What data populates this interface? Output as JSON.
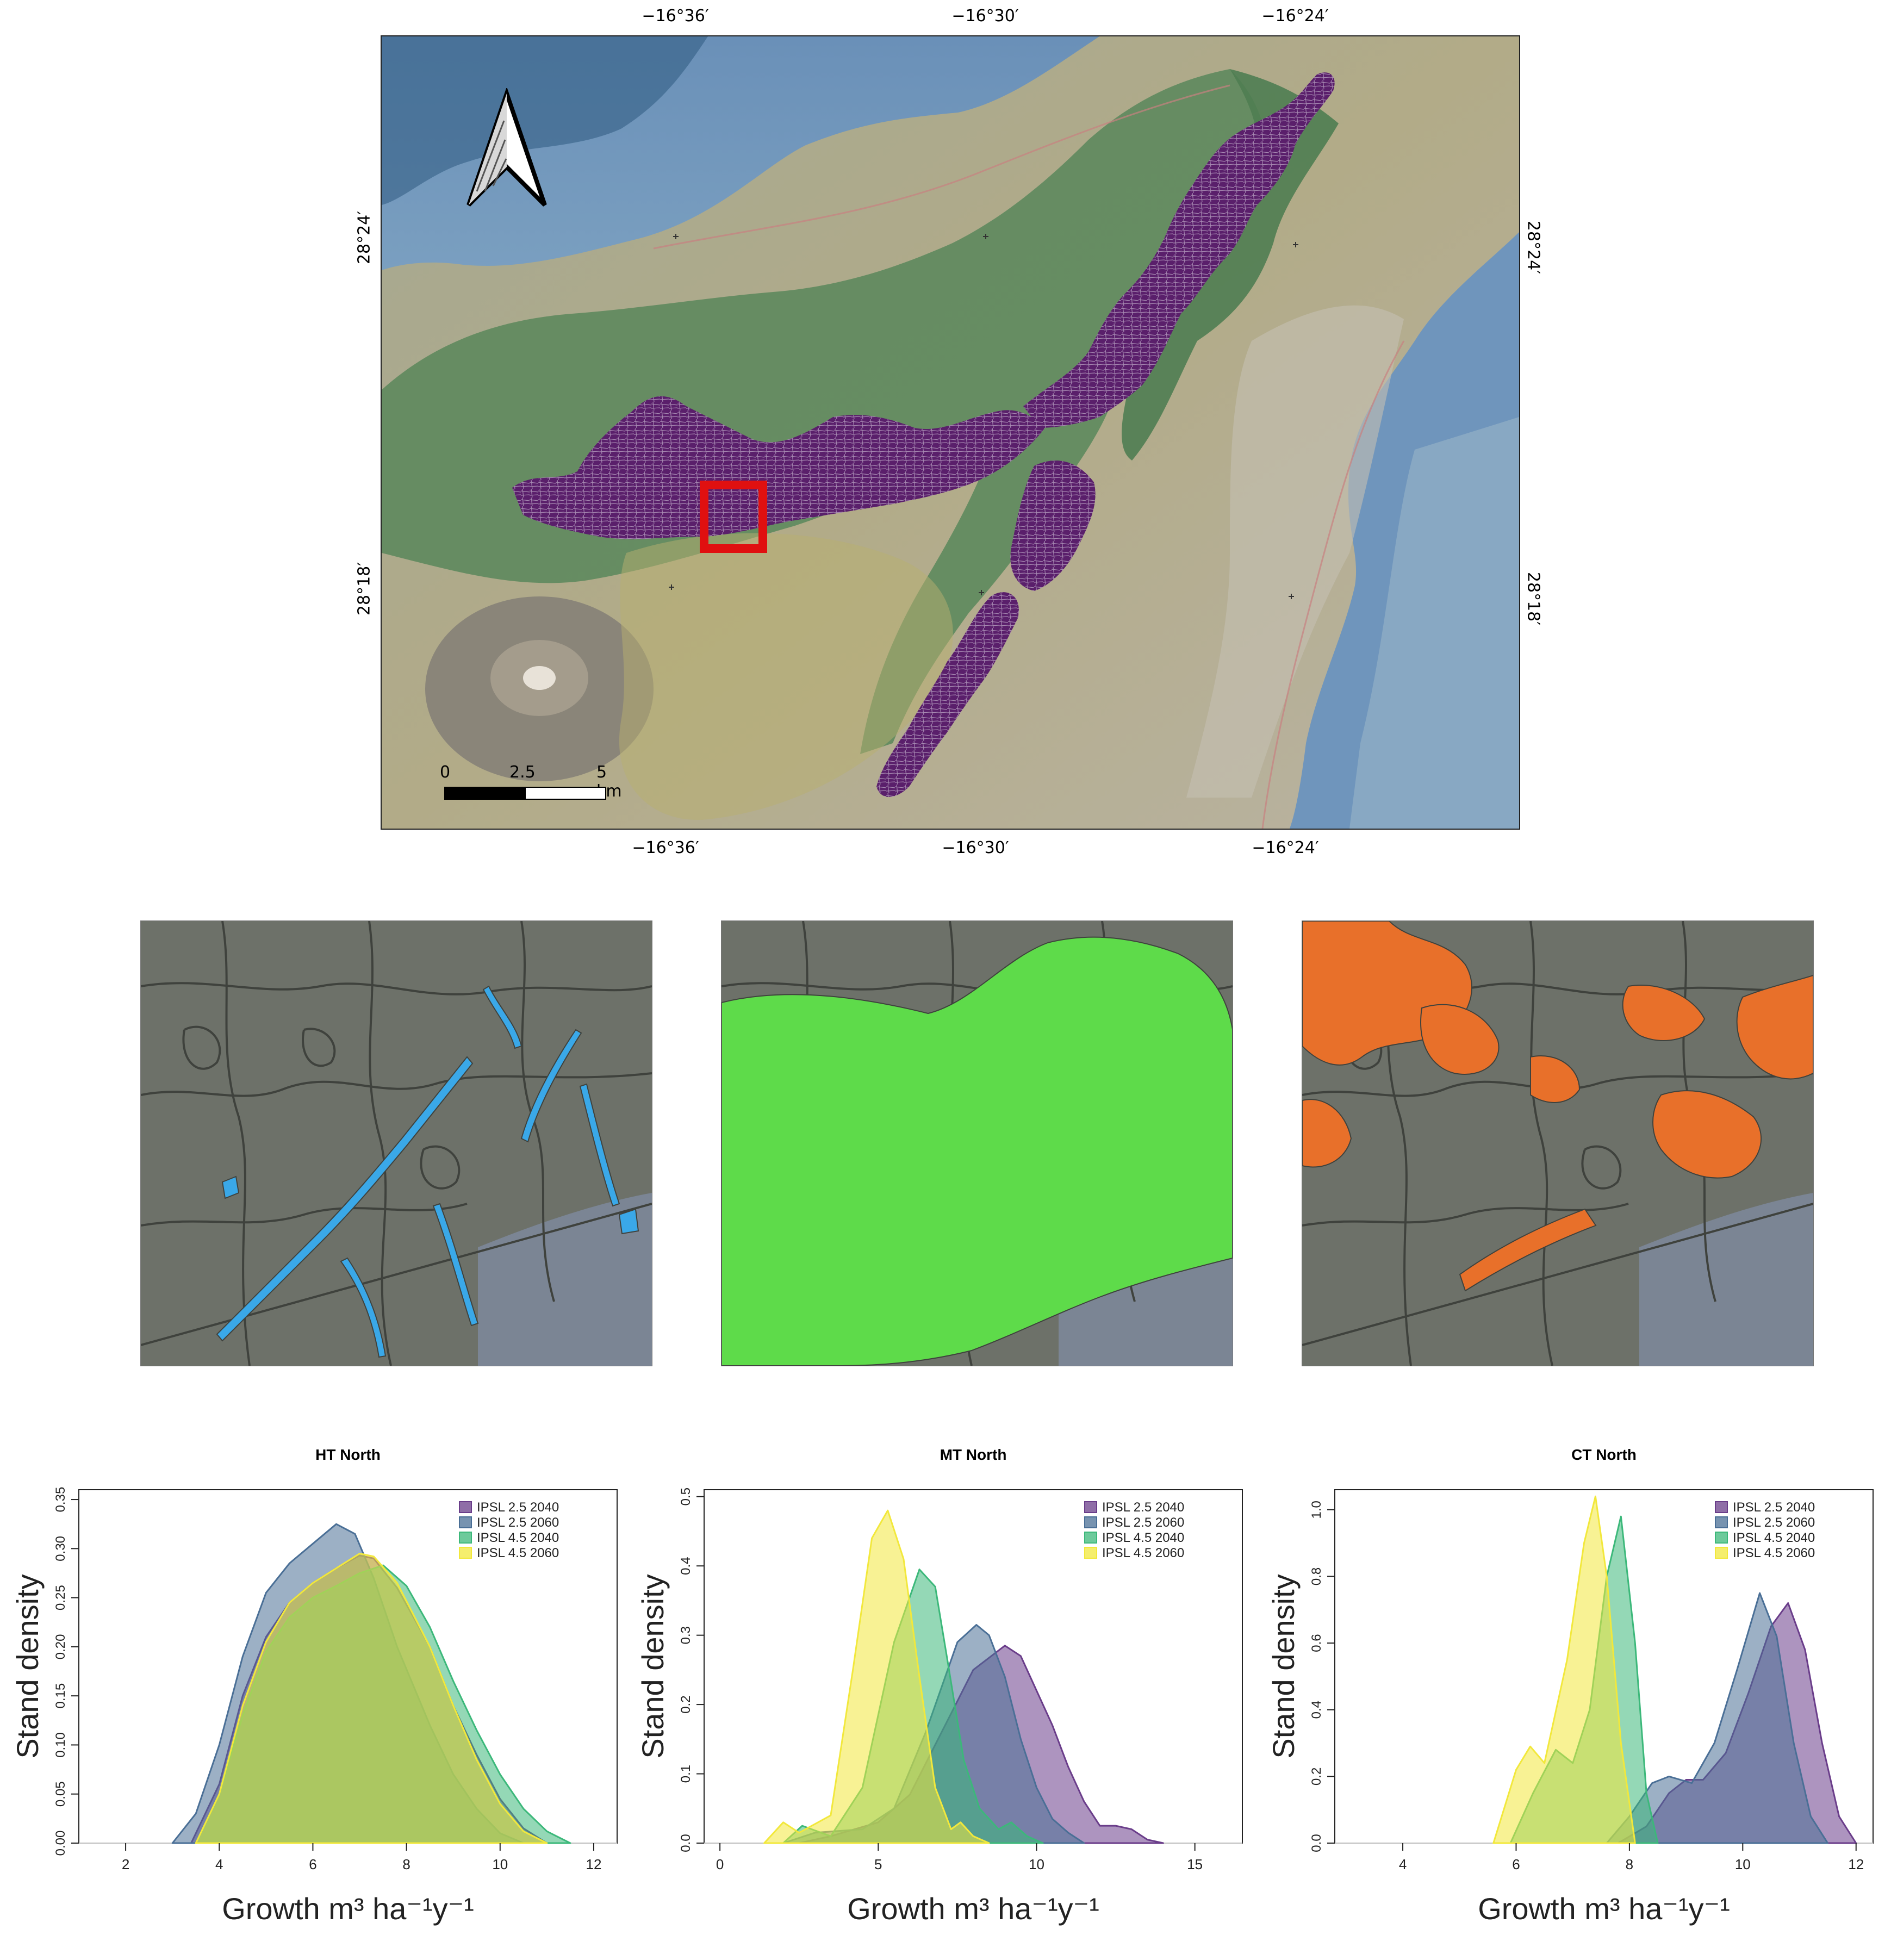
{
  "map": {
    "top_ticks": [
      {
        "label": "−16°36′",
        "lon": -16.6
      },
      {
        "label": "−16°30′",
        "lon": -16.5
      },
      {
        "label": "−16°24′",
        "lon": -16.4
      }
    ],
    "bottom_ticks": [
      {
        "label": "−16°36′",
        "lon": -16.6
      },
      {
        "label": "−16°30′",
        "lon": -16.5
      },
      {
        "label": "−16°24′",
        "lon": -16.4
      }
    ],
    "left_ticks": [
      {
        "label": "28°24′",
        "lat": 28.4
      },
      {
        "label": "28°18′",
        "lat": 28.3
      }
    ],
    "right_ticks": [
      {
        "label": "28°24′",
        "lat": 28.4
      },
      {
        "label": "28°18′",
        "lat": 28.3
      }
    ],
    "scale_bar": {
      "labels": [
        "0",
        "2.5",
        "5 km"
      ]
    },
    "north_arrow_icon": "north-arrow-icon",
    "colors": {
      "ocean": "#6e93b8",
      "forest": "#5f8a5e",
      "stands": "#5a1f6b",
      "highlight": "#e01010"
    }
  },
  "insets": [
    {
      "name": "HT",
      "color": "#3aa8e8"
    },
    {
      "name": "MT",
      "color": "#5edb4a"
    },
    {
      "name": "CT",
      "color": "#e8702a"
    }
  ],
  "chart_data": [
    {
      "type": "area",
      "title": "HT North",
      "xlabel": "Growth m³ ha⁻¹y⁻¹",
      "ylabel": "Stand density",
      "xlim": [
        1,
        12.5
      ],
      "ylim": [
        0,
        0.36
      ],
      "xticks": [
        2,
        4,
        6,
        8,
        10,
        12
      ],
      "yticks": [
        0,
        0.05,
        0.1,
        0.15,
        0.2,
        0.25,
        0.3,
        0.35
      ],
      "yticklabels": [
        "0.00",
        "0.05",
        "0.10",
        "0.15",
        "0.20",
        "0.25",
        "0.30",
        "0.35"
      ],
      "legend_position": "top-right",
      "series": [
        {
          "name": "IPSL 2.5 2040",
          "color": "#6a3d8a",
          "points": [
            [
              3.4,
              0
            ],
            [
              4,
              0.06
            ],
            [
              4.5,
              0.15
            ],
            [
              5,
              0.21
            ],
            [
              5.5,
              0.245
            ],
            [
              6,
              0.265
            ],
            [
              6.5,
              0.28
            ],
            [
              7,
              0.293
            ],
            [
              7.3,
              0.29
            ],
            [
              7.8,
              0.26
            ],
            [
              8.5,
              0.2
            ],
            [
              9,
              0.14
            ],
            [
              9.5,
              0.09
            ],
            [
              10,
              0.045
            ],
            [
              10.5,
              0.015
            ],
            [
              11,
              0
            ]
          ]
        },
        {
          "name": "IPSL 2.5 2060",
          "color": "#4a6f96",
          "points": [
            [
              3,
              0
            ],
            [
              3.5,
              0.03
            ],
            [
              4,
              0.1
            ],
            [
              4.5,
              0.19
            ],
            [
              5,
              0.255
            ],
            [
              5.5,
              0.285
            ],
            [
              6,
              0.305
            ],
            [
              6.5,
              0.325
            ],
            [
              6.9,
              0.315
            ],
            [
              7.3,
              0.27
            ],
            [
              7.8,
              0.2
            ],
            [
              8.5,
              0.12
            ],
            [
              9,
              0.07
            ],
            [
              9.5,
              0.035
            ],
            [
              10,
              0.01
            ],
            [
              10.5,
              0
            ]
          ]
        },
        {
          "name": "IPSL 4.5 2040",
          "color": "#3cb87a",
          "points": [
            [
              3.5,
              0
            ],
            [
              4,
              0.05
            ],
            [
              4.5,
              0.13
            ],
            [
              5,
              0.195
            ],
            [
              5.5,
              0.23
            ],
            [
              6,
              0.25
            ],
            [
              6.5,
              0.262
            ],
            [
              7,
              0.275
            ],
            [
              7.5,
              0.283
            ],
            [
              8,
              0.262
            ],
            [
              8.5,
              0.22
            ],
            [
              9,
              0.165
            ],
            [
              9.5,
              0.115
            ],
            [
              10,
              0.07
            ],
            [
              10.5,
              0.035
            ],
            [
              11,
              0.012
            ],
            [
              11.5,
              0
            ]
          ]
        },
        {
          "name": "IPSL 4.5 2060",
          "color": "#f2e83c",
          "points": [
            [
              3.5,
              0
            ],
            [
              4,
              0.05
            ],
            [
              4.5,
              0.14
            ],
            [
              5,
              0.205
            ],
            [
              5.5,
              0.245
            ],
            [
              6,
              0.265
            ],
            [
              6.5,
              0.28
            ],
            [
              7,
              0.295
            ],
            [
              7.3,
              0.292
            ],
            [
              7.8,
              0.265
            ],
            [
              8.5,
              0.2
            ],
            [
              9,
              0.14
            ],
            [
              9.5,
              0.085
            ],
            [
              10,
              0.04
            ],
            [
              10.5,
              0.012
            ],
            [
              11,
              0
            ]
          ]
        }
      ]
    },
    {
      "type": "area",
      "title": "MT North",
      "xlabel": "Growth m³ ha⁻¹y⁻¹",
      "ylabel": "Stand density",
      "xlim": [
        -0.5,
        16.5
      ],
      "ylim": [
        0,
        0.51
      ],
      "xticks": [
        0,
        5,
        10,
        15
      ],
      "yticks": [
        0,
        0.1,
        0.2,
        0.3,
        0.4,
        0.5
      ],
      "yticklabels": [
        "0.0",
        "0.1",
        "0.2",
        "0.3",
        "0.4",
        "0.5"
      ],
      "legend_position": "top-right",
      "series": [
        {
          "name": "IPSL 2.5 2040",
          "color": "#6a3d8a",
          "points": [
            [
              2.5,
              0
            ],
            [
              3.5,
              0.01
            ],
            [
              5,
              0.03
            ],
            [
              6,
              0.07
            ],
            [
              7,
              0.16
            ],
            [
              8,
              0.25
            ],
            [
              9,
              0.285
            ],
            [
              9.5,
              0.27
            ],
            [
              10,
              0.22
            ],
            [
              10.5,
              0.17
            ],
            [
              11,
              0.11
            ],
            [
              11.5,
              0.06
            ],
            [
              12,
              0.025
            ],
            [
              12.5,
              0.025
            ],
            [
              13,
              0.02
            ],
            [
              13.5,
              0.005
            ],
            [
              14,
              0
            ]
          ]
        },
        {
          "name": "IPSL 2.5 2060",
          "color": "#4a6f96",
          "points": [
            [
              2,
              0
            ],
            [
              3,
              0.015
            ],
            [
              4.5,
              0.02
            ],
            [
              5.5,
              0.05
            ],
            [
              6.5,
              0.16
            ],
            [
              7.5,
              0.29
            ],
            [
              8.1,
              0.315
            ],
            [
              8.5,
              0.3
            ],
            [
              9,
              0.24
            ],
            [
              9.5,
              0.15
            ],
            [
              10,
              0.08
            ],
            [
              10.5,
              0.035
            ],
            [
              11,
              0.015
            ],
            [
              11.5,
              0
            ]
          ]
        },
        {
          "name": "IPSL 4.5 2040",
          "color": "#3cb87a",
          "points": [
            [
              2,
              0
            ],
            [
              2.6,
              0.025
            ],
            [
              3.5,
              0.01
            ],
            [
              4.5,
              0.08
            ],
            [
              5.5,
              0.29
            ],
            [
              6.3,
              0.395
            ],
            [
              6.8,
              0.37
            ],
            [
              7.2,
              0.26
            ],
            [
              7.7,
              0.12
            ],
            [
              8.2,
              0.05
            ],
            [
              8.8,
              0.02
            ],
            [
              9.2,
              0.03
            ],
            [
              9.7,
              0.01
            ],
            [
              10.2,
              0
            ]
          ]
        },
        {
          "name": "IPSL 4.5 2060",
          "color": "#f2e83c",
          "points": [
            [
              1.4,
              0
            ],
            [
              2,
              0.03
            ],
            [
              2.5,
              0.015
            ],
            [
              3.5,
              0.04
            ],
            [
              4.2,
              0.25
            ],
            [
              4.8,
              0.44
            ],
            [
              5.3,
              0.48
            ],
            [
              5.8,
              0.41
            ],
            [
              6.3,
              0.24
            ],
            [
              6.8,
              0.08
            ],
            [
              7.3,
              0.02
            ],
            [
              7.6,
              0.03
            ],
            [
              8,
              0.01
            ],
            [
              8.5,
              0
            ]
          ]
        }
      ]
    },
    {
      "type": "area",
      "title": "CT North",
      "xlabel": "Growth m³ ha⁻¹y⁻¹",
      "ylabel": "Stand density",
      "xlim": [
        2.8,
        12.3
      ],
      "ylim": [
        0,
        1.06
      ],
      "xticks": [
        4,
        6,
        8,
        10,
        12
      ],
      "yticks": [
        0,
        0.2,
        0.4,
        0.6,
        0.8,
        1.0
      ],
      "yticklabels": [
        "0.0",
        "0.2",
        "0.4",
        "0.6",
        "0.8",
        "1.0"
      ],
      "legend_position": "top-right",
      "series": [
        {
          "name": "IPSL 2.5 2040",
          "color": "#6a3d8a",
          "points": [
            [
              7.8,
              0
            ],
            [
              8.3,
              0.05
            ],
            [
              8.7,
              0.15
            ],
            [
              9,
              0.19
            ],
            [
              9.3,
              0.19
            ],
            [
              9.7,
              0.27
            ],
            [
              10.1,
              0.45
            ],
            [
              10.5,
              0.65
            ],
            [
              10.8,
              0.72
            ],
            [
              11.1,
              0.58
            ],
            [
              11.4,
              0.3
            ],
            [
              11.7,
              0.08
            ],
            [
              12,
              0
            ]
          ]
        },
        {
          "name": "IPSL 2.5 2060",
          "color": "#4a6f96",
          "points": [
            [
              7.6,
              0
            ],
            [
              8,
              0.08
            ],
            [
              8.4,
              0.18
            ],
            [
              8.7,
              0.2
            ],
            [
              9.1,
              0.18
            ],
            [
              9.5,
              0.3
            ],
            [
              9.9,
              0.52
            ],
            [
              10.3,
              0.75
            ],
            [
              10.6,
              0.62
            ],
            [
              10.9,
              0.3
            ],
            [
              11.2,
              0.08
            ],
            [
              11.5,
              0
            ]
          ]
        },
        {
          "name": "IPSL 4.5 2040",
          "color": "#3cb87a",
          "points": [
            [
              5.9,
              0
            ],
            [
              6.3,
              0.15
            ],
            [
              6.7,
              0.28
            ],
            [
              7,
              0.24
            ],
            [
              7.3,
              0.4
            ],
            [
              7.6,
              0.8
            ],
            [
              7.85,
              0.98
            ],
            [
              8.1,
              0.6
            ],
            [
              8.3,
              0.15
            ],
            [
              8.5,
              0
            ]
          ]
        },
        {
          "name": "IPSL 4.5 2060",
          "color": "#f2e83c",
          "points": [
            [
              5.6,
              0
            ],
            [
              6,
              0.22
            ],
            [
              6.25,
              0.29
            ],
            [
              6.5,
              0.24
            ],
            [
              6.9,
              0.55
            ],
            [
              7.2,
              0.9
            ],
            [
              7.4,
              1.04
            ],
            [
              7.6,
              0.8
            ],
            [
              7.85,
              0.3
            ],
            [
              8.1,
              0
            ]
          ]
        }
      ]
    }
  ]
}
